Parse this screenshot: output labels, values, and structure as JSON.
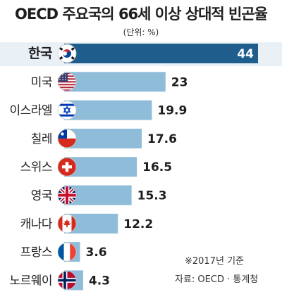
{
  "title": "OECD 주요국의 66세 이상 상대적 빈곤율",
  "unit": "(단위: %)",
  "notes": [
    "※2017년 기준",
    "자료: OECD · 통계청"
  ],
  "colors": {
    "highlight": "#1f5e8c",
    "bar": "#8fbcd8",
    "band": "#e9f1f7"
  },
  "chart_data": {
    "type": "bar",
    "orientation": "horizontal",
    "categories": [
      "한국",
      "미국",
      "이스라엘",
      "칠레",
      "스위스",
      "영국",
      "캐나다",
      "프랑스",
      "노르웨이"
    ],
    "values": [
      44,
      23,
      19.9,
      17.6,
      16.5,
      15.3,
      12.2,
      3.6,
      4.3
    ],
    "value_labels": [
      "44",
      "23",
      "19.9",
      "17.6",
      "16.5",
      "15.3",
      "12.2",
      "3.6",
      "4.3"
    ],
    "flags": [
      "south-korea-flag",
      "usa-flag",
      "israel-flag",
      "chile-flag",
      "switzerland-flag",
      "uk-flag",
      "canada-flag",
      "france-flag",
      "norway-flag"
    ],
    "highlight_index": 0,
    "title": "OECD 주요국의 66세 이상 상대적 빈곤율",
    "xlim": [
      0,
      44
    ]
  }
}
